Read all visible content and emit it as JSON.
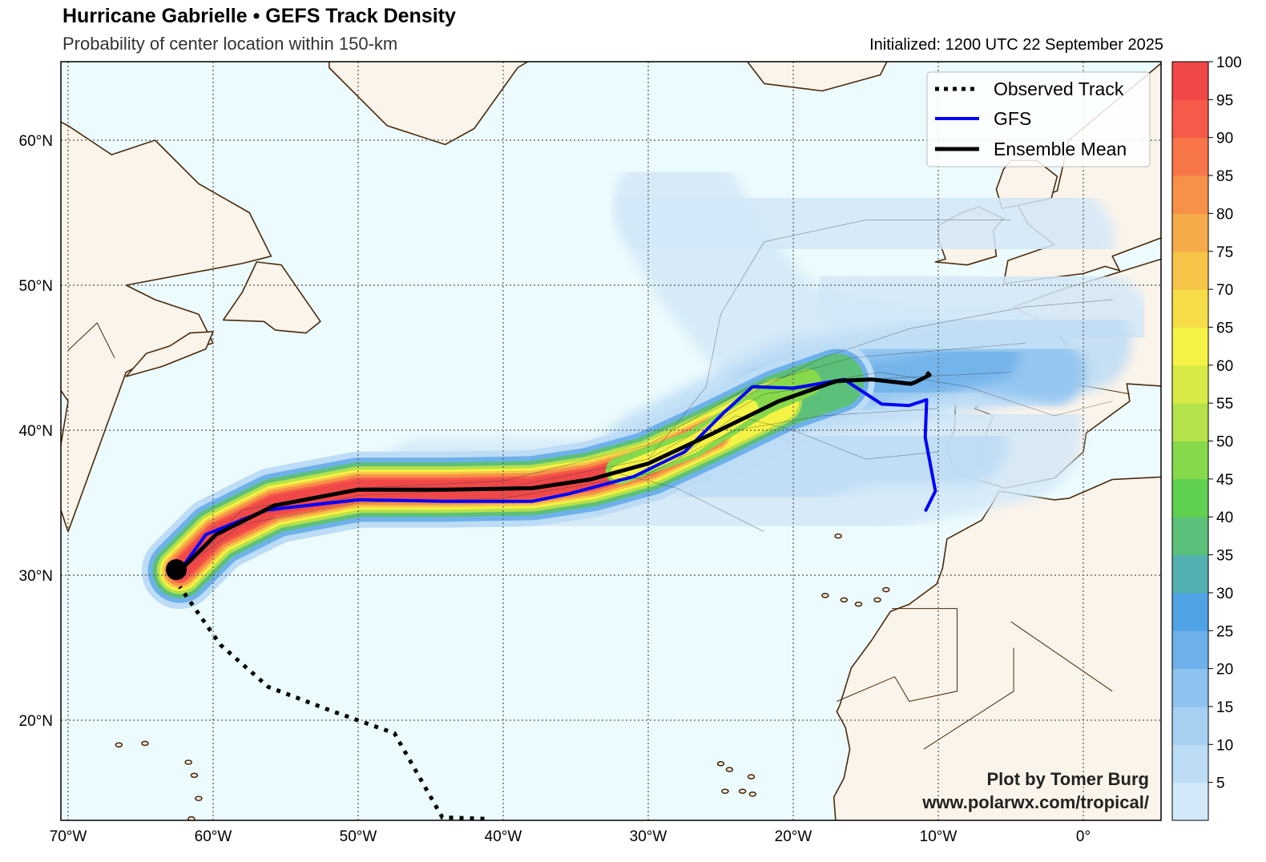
{
  "header": {
    "title": "Hurricane Gabrielle • GEFS Track Density",
    "subtitle": "Probability of center location within 150-km",
    "initialized": "Initialized: 1200 UTC 22 September 2025"
  },
  "map": {
    "lat_labels": [
      "60°N",
      "50°N",
      "40°N",
      "30°N",
      "20°N"
    ],
    "lon_labels": [
      "70°W",
      "60°W",
      "50°W",
      "40°W",
      "30°W",
      "20°W",
      "10°W",
      "0°"
    ],
    "colors": {
      "ocean": "#ecfbfd",
      "land": "#fbf4ea",
      "coast": "#4a2a0c",
      "grid": "#555555"
    }
  },
  "legend": {
    "items": [
      {
        "label": "Observed Track",
        "style": "dotted",
        "color": "#000000"
      },
      {
        "label": "GFS",
        "style": "solid",
        "color": "#0000ff"
      },
      {
        "label": "Ensemble Mean",
        "style": "solid",
        "color": "#000000"
      }
    ]
  },
  "colorbar": {
    "ticks": [
      "5",
      "10",
      "15",
      "20",
      "25",
      "30",
      "35",
      "40",
      "45",
      "50",
      "55",
      "60",
      "65",
      "70",
      "75",
      "80",
      "85",
      "90",
      "95",
      "100"
    ],
    "colors": [
      "#d3e8f8",
      "#bddcf5",
      "#a6d0f2",
      "#8ec2ef",
      "#6eb1ea",
      "#4fa2e4",
      "#52b0b0",
      "#5dc07a",
      "#5fd04f",
      "#86d94b",
      "#b5e14a",
      "#d9ea47",
      "#f5f246",
      "#f6dd48",
      "#f6c547",
      "#f6ab4a",
      "#f79048",
      "#f77548",
      "#f65a48",
      "#f04848"
    ]
  },
  "chart_data": {
    "type": "map",
    "title": "Hurricane Gabrielle • GEFS Track Density",
    "subtitle": "Probability of center location within 150-km",
    "colorbar_range": [
      0,
      100
    ],
    "series": [
      {
        "name": "Observed Track",
        "points": [
          [
            -41.3,
            13.2
          ],
          [
            -44.2,
            13.3
          ],
          [
            -47.5,
            19.1
          ],
          [
            -52,
            20.7
          ],
          [
            -56.2,
            22.3
          ],
          [
            -59.5,
            25.2
          ],
          [
            -62.3,
            29.2
          ]
        ]
      },
      {
        "name": "GFS",
        "points": [
          [
            -62.3,
            30.3
          ],
          [
            -60.5,
            32.8
          ],
          [
            -56.3,
            34.5
          ],
          [
            -50,
            35.2
          ],
          [
            -44,
            35.1
          ],
          [
            -38,
            35.1
          ],
          [
            -35.5,
            35.6
          ],
          [
            -31,
            36.8
          ],
          [
            -27.5,
            38.5
          ],
          [
            -24.8,
            41.2
          ],
          [
            -22.8,
            43
          ],
          [
            -20,
            42.9
          ],
          [
            -16.5,
            43.5
          ],
          [
            -13.9,
            41.8
          ],
          [
            -12,
            41.7
          ],
          [
            -10.8,
            42.1
          ],
          [
            -10.9,
            39.5
          ],
          [
            -10.2,
            35.8
          ],
          [
            -10.9,
            34.4
          ]
        ]
      },
      {
        "name": "Ensemble Mean",
        "points": [
          [
            -62.3,
            30.3
          ],
          [
            -59.8,
            32.8
          ],
          [
            -55.8,
            34.8
          ],
          [
            -50,
            35.9
          ],
          [
            -44,
            35.9
          ],
          [
            -38,
            36
          ],
          [
            -34,
            36.6
          ],
          [
            -30,
            37.7
          ],
          [
            -25.5,
            39.8
          ],
          [
            -21,
            42
          ],
          [
            -17,
            43.4
          ],
          [
            -14.6,
            43.5
          ],
          [
            -11.9,
            43.2
          ],
          [
            -11.6,
            43.3
          ],
          [
            -10.6,
            43.8
          ],
          [
            -10.8,
            44
          ]
        ]
      }
    ],
    "annotations": [
      "Plot by Tomer Burg",
      "www.polarwx.com/tropical/"
    ]
  }
}
